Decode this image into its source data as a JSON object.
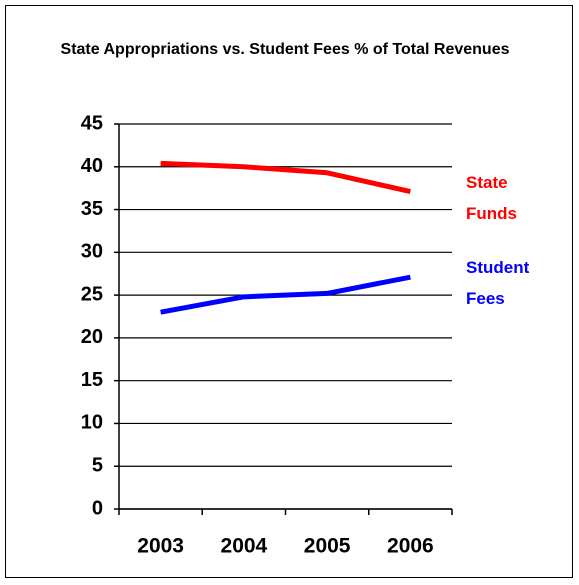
{
  "chart_data": {
    "type": "line",
    "title": "State Appropriations vs. Student Fees % of Total Revenues",
    "categories": [
      "2003",
      "2004",
      "2005",
      "2006"
    ],
    "series": [
      {
        "name": "State Funds",
        "color": "#ff0000",
        "values": [
          40.4,
          40.0,
          39.3,
          37.1
        ]
      },
      {
        "name": "Student Fees",
        "color": "#0000ff",
        "values": [
          23.0,
          24.8,
          25.2,
          27.1
        ]
      }
    ],
    "ylim": [
      0,
      45
    ],
    "yticks": [
      0,
      5,
      10,
      15,
      20,
      25,
      30,
      35,
      40,
      45
    ],
    "grid": true
  }
}
